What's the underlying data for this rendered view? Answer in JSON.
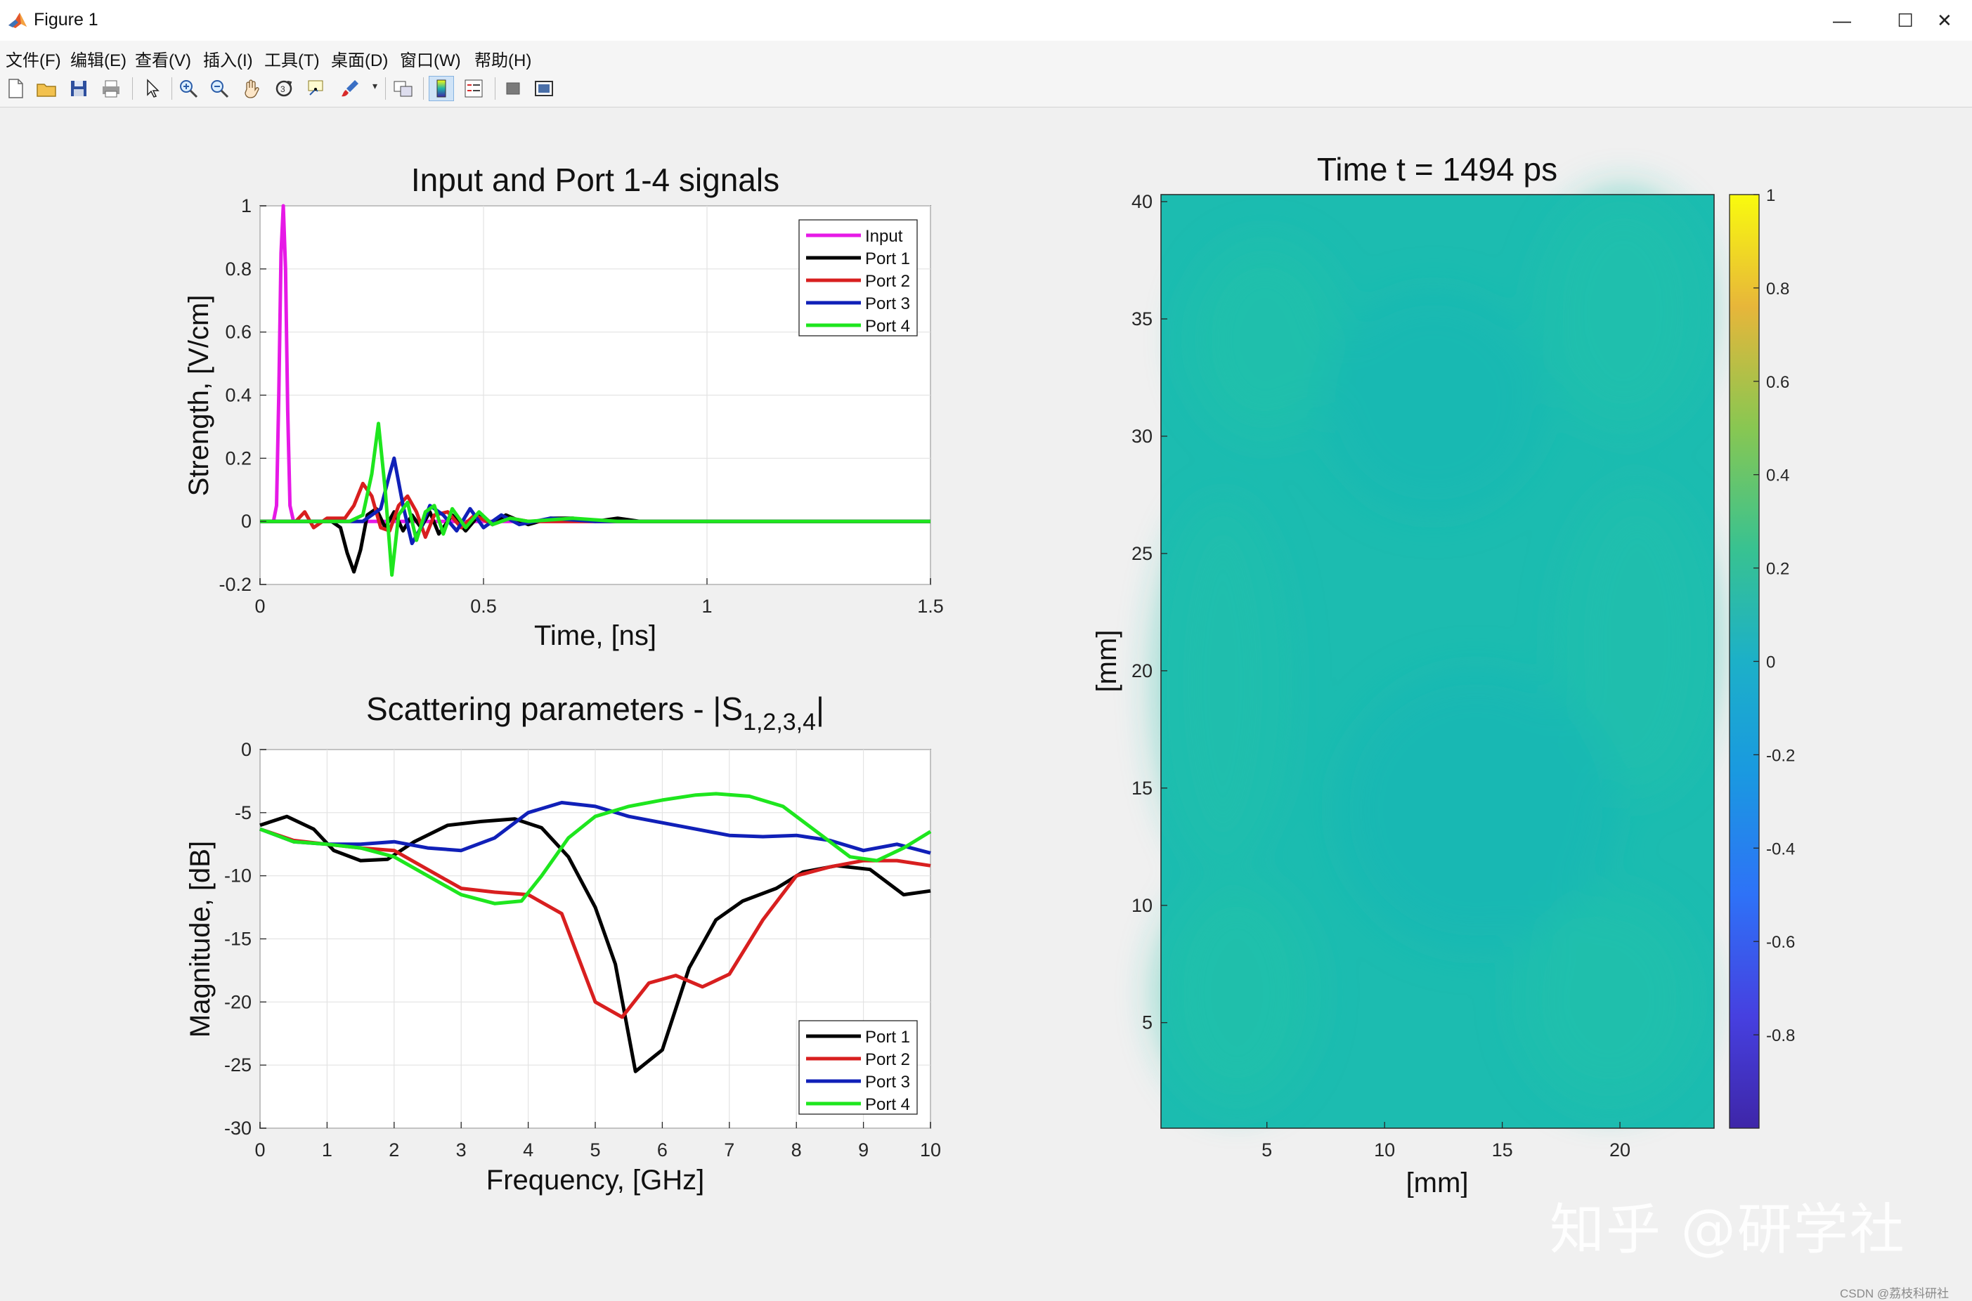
{
  "window": {
    "title": "Figure 1",
    "controls": {
      "minimize": "—",
      "maximize": "☐",
      "close": "✕"
    }
  },
  "menu": [
    "文件(F)",
    "编辑(E)",
    "查看(V)",
    "插入(I)",
    "工具(T)",
    "桌面(D)",
    "窗口(W)",
    "帮助(H)"
  ],
  "toolbar": [
    "new-figure-icon",
    "open-icon",
    "save-icon",
    "print-icon",
    "pointer-icon",
    "zoom-in-icon",
    "zoom-out-icon",
    "pan-icon",
    "rotate-icon",
    "data-cursor-icon",
    "brush-icon",
    "link-icon",
    "colorbar-toggle-icon",
    "legend-toggle-icon",
    "hide-tools-icon",
    "show-tools-icon"
  ],
  "colors": {
    "input": "#e619e6",
    "port1": "#000000",
    "port2": "#d81f1f",
    "port3": "#1020b8",
    "port4": "#1ee61e",
    "field": "#1cbcb0"
  },
  "chart_data": [
    {
      "type": "line",
      "title": "Input and Port 1-4 signals",
      "xlabel": "Time, [ns]",
      "ylabel": "Strength, [V/cm]",
      "xlim": [
        0,
        1.5
      ],
      "ylim": [
        -0.2,
        1
      ],
      "xticks": [
        "0",
        "0.5",
        "1",
        "1.5"
      ],
      "yticks": [
        "-0.2",
        "0",
        "0.2",
        "0.4",
        "0.6",
        "0.8",
        "1"
      ],
      "grid": true,
      "legend": "top-right",
      "series": [
        {
          "name": "Input",
          "color": "#e619e6",
          "x": [
            0,
            0.03,
            0.037,
            0.042,
            0.047,
            0.052,
            0.057,
            0.062,
            0.067,
            0.075,
            1.5
          ],
          "y": [
            0,
            0,
            0.05,
            0.4,
            0.85,
            1.0,
            0.8,
            0.35,
            0.05,
            0,
            0
          ]
        },
        {
          "name": "Port 1",
          "color": "#000000",
          "x": [
            0,
            0.16,
            0.18,
            0.195,
            0.21,
            0.225,
            0.24,
            0.26,
            0.28,
            0.3,
            0.32,
            0.34,
            0.36,
            0.38,
            0.4,
            0.43,
            0.46,
            0.49,
            0.52,
            0.55,
            0.6,
            0.65,
            0.7,
            0.75,
            0.8,
            0.85,
            0.9,
            1.0,
            1.1,
            1.5
          ],
          "y": [
            0,
            0,
            -0.02,
            -0.1,
            -0.16,
            -0.09,
            0.02,
            0.04,
            -0.02,
            0.03,
            -0.03,
            0.02,
            -0.02,
            0.03,
            -0.04,
            0.02,
            -0.03,
            0.02,
            -0.01,
            0.02,
            -0.01,
            0.01,
            0.01,
            0,
            0.01,
            0,
            0,
            0,
            0,
            0
          ]
        },
        {
          "name": "Port 2",
          "color": "#d81f1f",
          "x": [
            0,
            0.08,
            0.1,
            0.12,
            0.15,
            0.19,
            0.21,
            0.23,
            0.25,
            0.27,
            0.29,
            0.31,
            0.33,
            0.35,
            0.37,
            0.39,
            0.42,
            0.45,
            0.48,
            0.52,
            0.56,
            0.6,
            0.7,
            0.8,
            1.5
          ],
          "y": [
            0,
            0,
            0.03,
            -0.02,
            0.01,
            0.01,
            0.05,
            0.12,
            0.08,
            -0.02,
            -0.03,
            0.05,
            0.08,
            0.03,
            -0.05,
            0.02,
            0.03,
            -0.02,
            0.02,
            -0.01,
            0.01,
            0,
            0,
            0,
            0
          ]
        },
        {
          "name": "Port 3",
          "color": "#1020b8",
          "x": [
            0,
            0.2,
            0.23,
            0.25,
            0.27,
            0.29,
            0.3,
            0.32,
            0.34,
            0.36,
            0.38,
            0.41,
            0.44,
            0.47,
            0.5,
            0.54,
            0.58,
            0.65,
            0.75,
            1.5
          ],
          "y": [
            0,
            0,
            0,
            0.02,
            0.04,
            0.15,
            0.2,
            0.05,
            -0.07,
            -0.02,
            0.05,
            0.02,
            -0.03,
            0.04,
            -0.02,
            0.02,
            -0.01,
            0.01,
            0,
            0
          ]
        },
        {
          "name": "Port 4",
          "color": "#1ee61e",
          "x": [
            0,
            0.2,
            0.23,
            0.25,
            0.265,
            0.28,
            0.295,
            0.31,
            0.33,
            0.35,
            0.37,
            0.39,
            0.41,
            0.43,
            0.46,
            0.49,
            0.52,
            0.56,
            0.6,
            0.7,
            0.8,
            1.5
          ],
          "y": [
            0,
            0,
            0.02,
            0.15,
            0.31,
            0.1,
            -0.17,
            0.02,
            0.06,
            -0.06,
            0.03,
            0.05,
            -0.04,
            0.04,
            -0.02,
            0.03,
            -0.01,
            0.01,
            0,
            0.01,
            0,
            0
          ]
        }
      ]
    },
    {
      "type": "line",
      "title": "Scattering parameters - |S",
      "title_sub": "1,2,3,4",
      "title_end": "|",
      "xlabel": "Frequency, [GHz]",
      "ylabel": "Magnitude, [dB]",
      "xlim": [
        0,
        10
      ],
      "ylim": [
        -30,
        0
      ],
      "xticks": [
        "0",
        "1",
        "2",
        "3",
        "4",
        "5",
        "6",
        "7",
        "8",
        "9",
        "10"
      ],
      "yticks": [
        "-30",
        "-25",
        "-20",
        "-15",
        "-10",
        "-5",
        "0"
      ],
      "grid": true,
      "legend": "bottom-right",
      "series": [
        {
          "name": "Port 1",
          "color": "#000000",
          "x": [
            0,
            0.4,
            0.8,
            1.1,
            1.5,
            1.9,
            2.3,
            2.8,
            3.3,
            3.8,
            4.2,
            4.6,
            5.0,
            5.3,
            5.6,
            6.0,
            6.4,
            6.8,
            7.2,
            7.7,
            8.1,
            8.6,
            9.1,
            9.6,
            10
          ],
          "y": [
            -6,
            -5.3,
            -6.3,
            -8,
            -8.8,
            -8.7,
            -7.3,
            -6,
            -5.7,
            -5.5,
            -6.2,
            -8.5,
            -12.5,
            -17,
            -25.5,
            -23.8,
            -17.3,
            -13.5,
            -12,
            -11,
            -9.7,
            -9.2,
            -9.5,
            -11.5,
            -11.2
          ]
        },
        {
          "name": "Port 2",
          "color": "#d81f1f",
          "x": [
            0,
            0.5,
            1.0,
            1.5,
            2.0,
            2.5,
            3.0,
            3.5,
            4.0,
            4.5,
            5.0,
            5.4,
            5.8,
            6.2,
            6.6,
            7.0,
            7.5,
            8.0,
            8.5,
            9.0,
            9.5,
            10
          ],
          "y": [
            -6.3,
            -7.2,
            -7.5,
            -7.8,
            -8,
            -9.5,
            -11,
            -11.3,
            -11.5,
            -13,
            -20,
            -21.2,
            -18.5,
            -17.9,
            -18.8,
            -17.8,
            -13.5,
            -10,
            -9.3,
            -8.8,
            -8.8,
            -9.2
          ]
        },
        {
          "name": "Port 3",
          "color": "#1020b8",
          "x": [
            0,
            0.5,
            1.0,
            1.5,
            2.0,
            2.5,
            3.0,
            3.5,
            4.0,
            4.5,
            5.0,
            5.5,
            6.0,
            6.5,
            7.0,
            7.5,
            8.0,
            8.5,
            9.0,
            9.5,
            10
          ],
          "y": [
            -6.3,
            -7.3,
            -7.5,
            -7.5,
            -7.3,
            -7.8,
            -8,
            -7,
            -5,
            -4.2,
            -4.5,
            -5.3,
            -5.8,
            -6.3,
            -6.8,
            -6.9,
            -6.8,
            -7.2,
            -8,
            -7.5,
            -8.2
          ]
        },
        {
          "name": "Port 4",
          "color": "#1ee61e",
          "x": [
            0,
            0.5,
            1.0,
            1.5,
            2.0,
            2.5,
            3.0,
            3.5,
            3.9,
            4.2,
            4.6,
            5.0,
            5.5,
            6.0,
            6.5,
            6.8,
            7.3,
            7.8,
            8.3,
            8.8,
            9.2,
            9.6,
            10
          ],
          "y": [
            -6.3,
            -7.3,
            -7.5,
            -7.8,
            -8.5,
            -10,
            -11.5,
            -12.2,
            -12,
            -10,
            -7,
            -5.3,
            -4.5,
            -4,
            -3.6,
            -3.5,
            -3.7,
            -4.5,
            -6.5,
            -8.5,
            -8.8,
            -7.8,
            -6.5
          ]
        }
      ]
    },
    {
      "type": "heatmap",
      "title": "Time t = 1494 ps",
      "xlabel": "[mm]",
      "ylabel": "[mm]",
      "xlim": [
        0.5,
        24
      ],
      "ylim": [
        0.5,
        40.3
      ],
      "xticks": [
        "5",
        "10",
        "15",
        "20"
      ],
      "yticks": [
        "5",
        "10",
        "15",
        "20",
        "25",
        "30",
        "35",
        "40"
      ],
      "field_value": 0,
      "colorbar": {
        "range": [
          -1,
          1
        ],
        "ticks": [
          "1",
          "0.8",
          "0.6",
          "0.4",
          "0.2",
          "0",
          "-0.2",
          "-0.4",
          "-0.6",
          "-0.8"
        ],
        "colormap": "parula"
      }
    }
  ],
  "watermark": "知乎 @研学社",
  "credit": "CSDN @荔枝科研社"
}
